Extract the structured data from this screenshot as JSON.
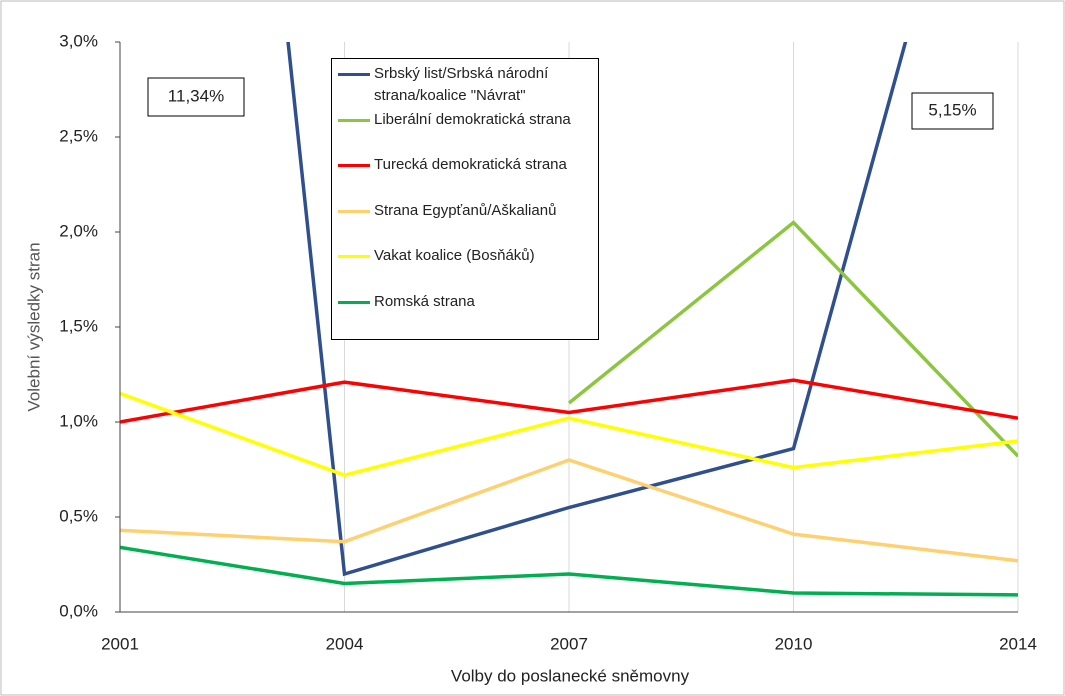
{
  "chart_data": {
    "type": "line",
    "x_label": "Volby do poslanecké sněmovny",
    "y_label": "Volební výsledky stran",
    "categories": [
      "2001",
      "2004",
      "2007",
      "2010",
      "2014"
    ],
    "ylim": [
      0,
      3
    ],
    "yticks": [
      {
        "value": 0,
        "label": "0,0%"
      },
      {
        "value": 0.5,
        "label": "0,5%"
      },
      {
        "value": 1,
        "label": "1,0%"
      },
      {
        "value": 1.5,
        "label": "1,5%"
      },
      {
        "value": 2,
        "label": "2,0%"
      },
      {
        "value": 2.5,
        "label": "2,5%"
      },
      {
        "value": 3,
        "label": "3,0%"
      }
    ],
    "grid": true,
    "series": [
      {
        "name": "Srbský list/Srbská národní strana/koalice \"Návrat\"",
        "color": "#2f4f8f",
        "values": [
          11.34,
          0.2,
          0.55,
          0.86,
          5.15
        ],
        "value_labels": [
          "11,34%",
          null,
          null,
          null,
          "5,15%"
        ]
      },
      {
        "name": "Liberální demokratická strana",
        "color": "#8cc63f",
        "values": [
          null,
          null,
          1.1,
          2.05,
          0.82
        ]
      },
      {
        "name": "Turecká demokratická strana",
        "color": "#ff0000",
        "values": [
          1.0,
          1.21,
          1.05,
          1.22,
          1.02
        ]
      },
      {
        "name": "Strana Egypťanů/Aškalianů",
        "color": "#ffd070",
        "values": [
          0.43,
          0.37,
          0.8,
          0.41,
          0.27
        ]
      },
      {
        "name": "Vakat koalice (Bosňáků)",
        "color": "#ffff00",
        "values": [
          1.15,
          0.72,
          1.02,
          0.76,
          0.9
        ]
      },
      {
        "name": "Romská strana",
        "color": "#00b050",
        "values": [
          0.34,
          0.15,
          0.2,
          0.1,
          0.09
        ]
      }
    ]
  }
}
